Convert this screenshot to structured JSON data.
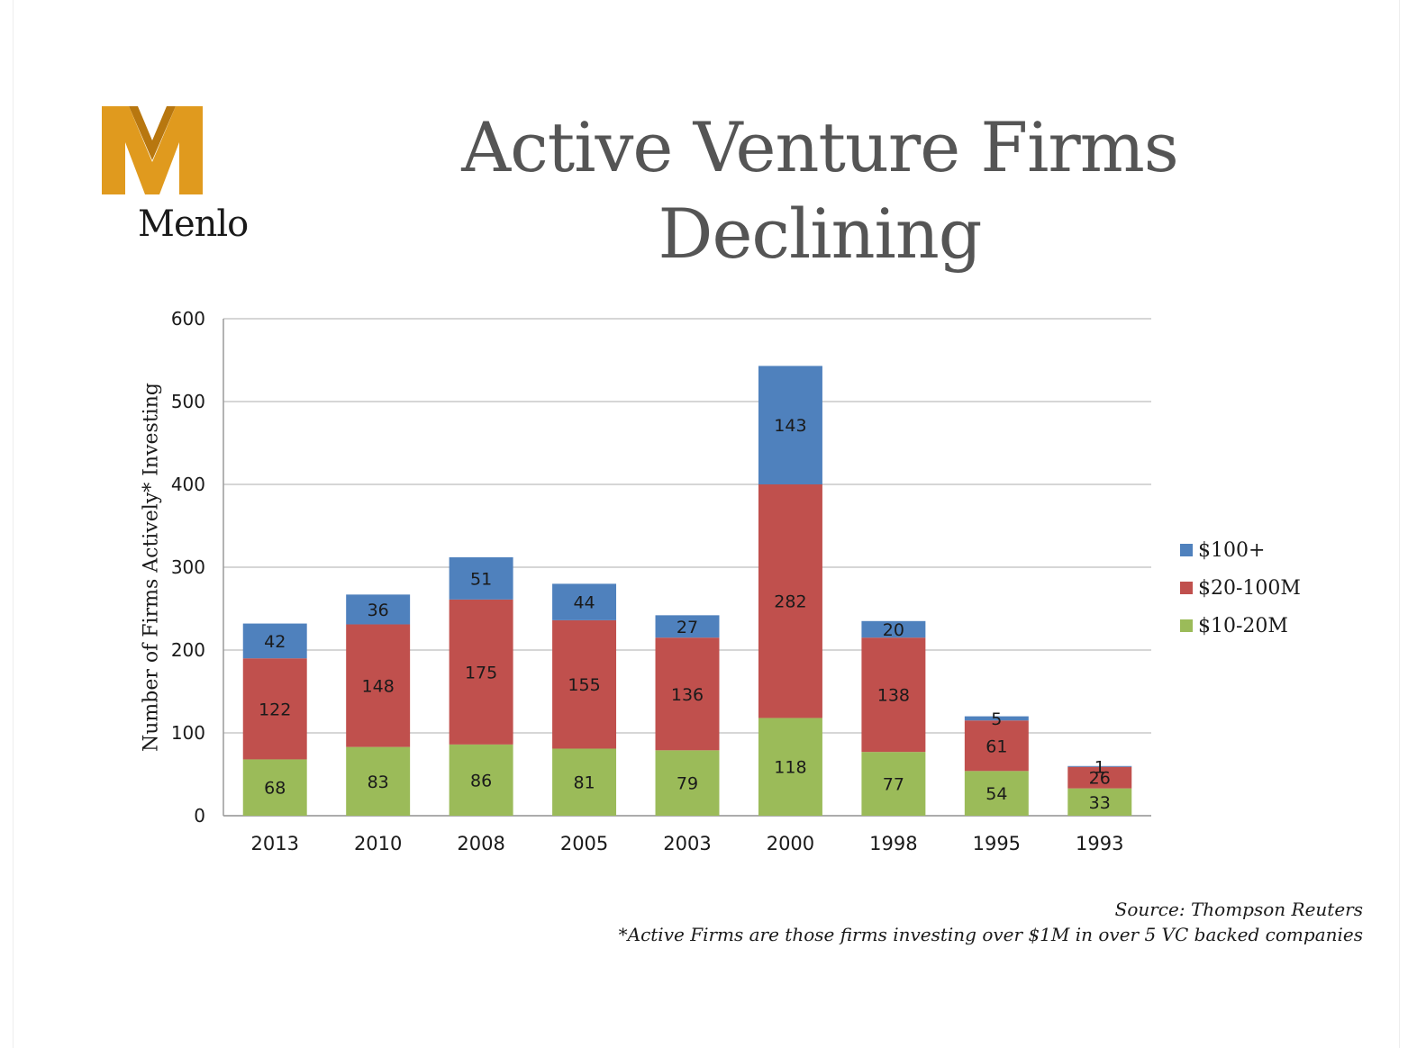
{
  "logo": {
    "text": "Menlo",
    "mark_color": "#E09A1E",
    "mark_shadow": "#B8770F"
  },
  "title": {
    "line1": "Active Venture Firms",
    "line2": "Declining"
  },
  "notes": {
    "source": "Source: Thompson Reuters",
    "footnote": "*Active Firms are those firms investing over $1M in over 5 VC backed companies"
  },
  "chart_data": {
    "type": "bar",
    "stacked": true,
    "categories": [
      "2013",
      "2010",
      "2008",
      "2005",
      "2003",
      "2000",
      "1998",
      "1995",
      "1993"
    ],
    "series": [
      {
        "name": "$10-20M",
        "color": "#9BBB59",
        "values": [
          68,
          83,
          86,
          81,
          79,
          118,
          77,
          54,
          33
        ]
      },
      {
        "name": "$20-100M",
        "color": "#C0504D",
        "values": [
          122,
          148,
          175,
          155,
          136,
          282,
          138,
          61,
          26
        ]
      },
      {
        "name": "$100+",
        "color": "#4F81BD",
        "values": [
          42,
          36,
          51,
          44,
          27,
          143,
          20,
          5,
          1
        ]
      }
    ],
    "ylabel": "Number of Firms Actively* Investing",
    "xlabel": "",
    "ylim": [
      0,
      600
    ],
    "yticks": [
      0,
      100,
      200,
      300,
      400,
      500,
      600
    ],
    "grid": true,
    "legend_position": "right",
    "legend_order": [
      "$100+",
      "$20-100M",
      "$10-20M"
    ]
  }
}
